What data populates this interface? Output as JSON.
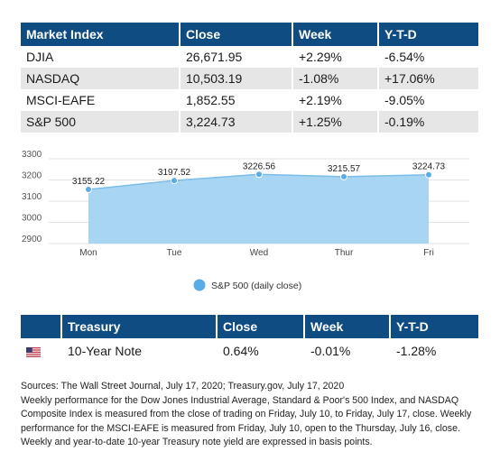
{
  "market_table": {
    "headers": [
      "Market Index",
      "Close",
      "Week",
      "Y-T-D"
    ],
    "rows": [
      [
        "DJIA",
        "26,671.95",
        "+2.29%",
        "-6.54%"
      ],
      [
        "NASDAQ",
        "10,503.19",
        "-1.08%",
        "+17.06%"
      ],
      [
        "MSCI-EAFE",
        "1,852.55",
        "+2.19%",
        "-9.05%"
      ],
      [
        "S&P 500",
        "3,224.73",
        "+1.25%",
        "-0.19%"
      ]
    ]
  },
  "chart_data": {
    "type": "area",
    "x": [
      "Mon",
      "Tue",
      "Wed",
      "Thur",
      "Fri"
    ],
    "series": [
      {
        "name": "S&P 500 (daily close)",
        "values": [
          3155.22,
          3197.52,
          3226.56,
          3215.57,
          3224.73
        ],
        "labels": [
          "3155.22",
          "3197.52",
          "3226.56",
          "3215.57",
          "3224.73"
        ]
      }
    ],
    "yticks": [
      2900,
      3000,
      3100,
      3200,
      3300
    ],
    "ylim": [
      2900,
      3300
    ],
    "grid": true,
    "legend": "bottom-center",
    "colors": {
      "fill": "#a8d5f2",
      "stroke": "#7bbde8",
      "marker": "#5aace6",
      "legend": "#5aace6",
      "grid": "#e3e3e3"
    }
  },
  "treasury_table": {
    "headers": [
      "",
      "Treasury",
      "Close",
      "Week",
      "Y-T-D"
    ],
    "row": {
      "flag": "us-flag-icon",
      "name": "10-Year Note",
      "close": "0.64%",
      "week": "-0.01%",
      "ytd": "-1.28%"
    }
  },
  "sources": {
    "line1": "Sources: The Wall Street Journal, July 17, 2020; Treasury.gov, July 17, 2020",
    "body": "Weekly performance for the Dow Jones Industrial Average, Standard & Poor's 500 Index, and NASDAQ Composite Index is measured from the close of trading on Friday, July 10, to Friday, July 17, close. Weekly performance for the MSCI-EAFE is measured from Friday, July 10, open to the Thursday, July 16, close. Weekly and year-to-date 10-year Treasury note yield are expressed in basis points."
  },
  "colors": {
    "header_bg": "#0f4c81",
    "header_text": "#ffffff",
    "row_alt": "#e6e6e6"
  }
}
